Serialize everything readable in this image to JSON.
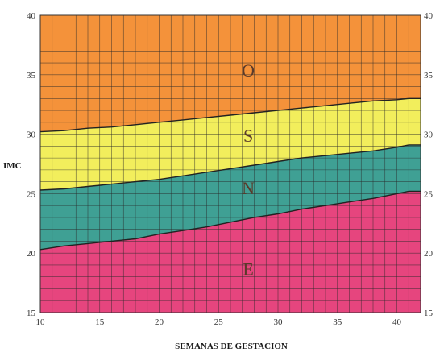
{
  "chart_data": {
    "type": "area",
    "xlabel": "SEMANAS DE GESTACION",
    "ylabel": "IMC",
    "xlim": [
      10,
      42
    ],
    "ylim": [
      15,
      40
    ],
    "xticks": [
      10,
      15,
      20,
      25,
      30,
      35,
      40
    ],
    "yticks": [
      15,
      20,
      25,
      30,
      35,
      40
    ],
    "grid": true,
    "right_axis_ticks": true,
    "boundaries": [
      {
        "name": "E/N",
        "x": [
          10,
          12,
          14,
          16,
          18,
          20,
          22,
          24,
          26,
          28,
          30,
          32,
          34,
          36,
          38,
          40,
          41,
          42
        ],
        "y": [
          20.3,
          20.6,
          20.8,
          21.0,
          21.2,
          21.6,
          21.9,
          22.2,
          22.6,
          23.0,
          23.3,
          23.7,
          24.0,
          24.3,
          24.6,
          25.0,
          25.2,
          25.2
        ]
      },
      {
        "name": "N/S",
        "x": [
          10,
          12,
          14,
          16,
          18,
          20,
          22,
          24,
          26,
          28,
          30,
          32,
          34,
          36,
          38,
          40,
          41,
          42
        ],
        "y": [
          25.3,
          25.4,
          25.6,
          25.8,
          26.0,
          26.2,
          26.5,
          26.8,
          27.1,
          27.4,
          27.7,
          28.0,
          28.2,
          28.4,
          28.6,
          28.9,
          29.1,
          29.1
        ]
      },
      {
        "name": "S/O",
        "x": [
          10,
          12,
          14,
          16,
          18,
          20,
          22,
          24,
          26,
          28,
          30,
          32,
          34,
          36,
          38,
          40,
          41,
          42
        ],
        "y": [
          30.2,
          30.3,
          30.5,
          30.6,
          30.8,
          31.0,
          31.2,
          31.4,
          31.6,
          31.8,
          32.0,
          32.2,
          32.4,
          32.6,
          32.8,
          32.9,
          33.0,
          33.0
        ]
      }
    ],
    "regions": [
      {
        "label": "E",
        "color": "#e6457e",
        "label_x": 27.5,
        "label_y": 18.5
      },
      {
        "label": "N",
        "color": "#3fa094",
        "label_x": 27.5,
        "label_y": 25.3
      },
      {
        "label": "S",
        "color": "#f2ee5c",
        "label_x": 27.5,
        "label_y": 29.7
      },
      {
        "label": "O",
        "color": "#f4923a",
        "label_x": 27.5,
        "label_y": 35.2
      }
    ],
    "colors": {
      "grid": "#2a2a2a",
      "boundary": "#222222",
      "frame": "#333333"
    }
  }
}
